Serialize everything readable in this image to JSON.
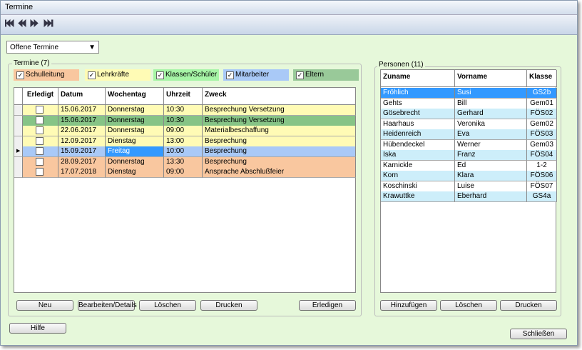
{
  "window": {
    "title": "Termine"
  },
  "filter_dropdown": "Offene Termine",
  "termine": {
    "label": "Termine (7)",
    "filters": [
      {
        "label": "Schulleitung",
        "checked": true,
        "color": "#f9c79f"
      },
      {
        "label": "Lehrkräfte",
        "checked": true,
        "color": "#fffbb5"
      },
      {
        "label": "Klassen/Schüler",
        "checked": true,
        "color": "#a6f5a6"
      },
      {
        "label": "Mitarbeiter",
        "checked": true,
        "color": "#a9c9f7"
      },
      {
        "label": "Eltern",
        "checked": true,
        "color": "#99c999"
      }
    ],
    "columns": [
      "Erledigt",
      "Datum",
      "Wochentag",
      "Uhrzeit",
      "Zweck"
    ],
    "rows": [
      {
        "cells": [
          "15.06.2017",
          "Donnerstag",
          "10:30",
          "Besprechung Versetzung"
        ],
        "color": "#fffbb5"
      },
      {
        "cells": [
          "15.06.2017",
          "Donnerstag",
          "10:30",
          "Besprechung Versetzung"
        ],
        "color": "#86c486"
      },
      {
        "cells": [
          "22.06.2017",
          "Donnerstag",
          "09:00",
          "Materialbeschaffung"
        ],
        "color": "#fffbb5"
      },
      {
        "cells": [
          "12.09.2017",
          "Dienstag",
          "13:00",
          "Besprechung"
        ],
        "color": "#fffbb5"
      },
      {
        "cells": [
          "15.09.2017",
          "Freitag",
          "10:00",
          "Besprechung"
        ],
        "color": "#a9c9f7",
        "selected": true
      },
      {
        "cells": [
          "28.09.2017",
          "Donnerstag",
          "13:30",
          "Besprechung"
        ],
        "color": "#f9c79f"
      },
      {
        "cells": [
          "17.07.2018",
          "Dienstag",
          "09:00",
          "Ansprache Abschlußfeier"
        ],
        "color": "#f9c79f"
      }
    ],
    "buttons": [
      "Neu",
      "Bearbeiten/Details",
      "Löschen",
      "Drucken",
      "Erledigen"
    ]
  },
  "personen": {
    "label": "Personen (11)",
    "columns": [
      "Zuname",
      "Vorname",
      "Klasse"
    ],
    "rows": [
      [
        "Fröhlich",
        "Susi",
        "GS2b"
      ],
      [
        "Gehts",
        "Bill",
        "Gem01"
      ],
      [
        "Gösebrecht",
        "Gerhard",
        "FÖS02"
      ],
      [
        "Haarhaus",
        "Veronika",
        "Gem02"
      ],
      [
        "Heidenreich",
        "Eva",
        "FÖS03"
      ],
      [
        "Hübendeckel",
        "Werner",
        "Gem03"
      ],
      [
        "Iska",
        "Franz",
        "FÖS04"
      ],
      [
        "Karnickle",
        "Ed",
        "1-2"
      ],
      [
        "Korn",
        "Klara",
        "FÖS06"
      ],
      [
        "Koschinski",
        "Luise",
        "FÖS07"
      ],
      [
        "Krawuttke",
        "Eberhard",
        "GS4a"
      ]
    ],
    "buttons": [
      "Hinzufügen",
      "Löschen",
      "Drucken"
    ]
  },
  "footer_buttons": [
    "Hilfe",
    "Schließen"
  ]
}
